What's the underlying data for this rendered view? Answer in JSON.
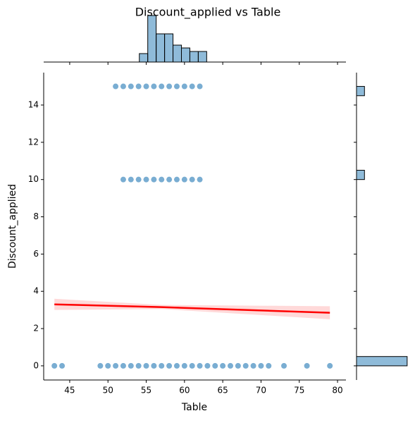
{
  "chart_data": {
    "type": "scatter",
    "title": "Discount_applied vs Table",
    "x_label": "Table",
    "y_label": "Discount_applied",
    "xlim": [
      41.6,
      81.1
    ],
    "xticks": [
      45,
      50,
      55,
      60,
      65,
      70,
      75,
      80
    ],
    "ylim": [
      -0.76,
      15.74
    ],
    "yticks": [
      0,
      2,
      4,
      6,
      8,
      10,
      12,
      14
    ],
    "color": "#1f77b4",
    "x": [
      51,
      52,
      53,
      54,
      55,
      56,
      57,
      58,
      59,
      60,
      61,
      62,
      52,
      53,
      54,
      55,
      56,
      57,
      58,
      59,
      60,
      61,
      62,
      43,
      44,
      49,
      50,
      51,
      52,
      53,
      54,
      55,
      56,
      57,
      58,
      59,
      60,
      61,
      62,
      63,
      64,
      65,
      66,
      67,
      68,
      69,
      70,
      71,
      73,
      76,
      79
    ],
    "y": [
      15,
      15,
      15,
      15,
      15,
      15,
      15,
      15,
      15,
      15,
      15,
      15,
      10,
      10,
      10,
      10,
      10,
      10,
      10,
      10,
      10,
      10,
      10,
      0,
      0,
      0,
      0,
      0,
      0,
      0,
      0,
      0,
      0,
      0,
      0,
      0,
      0,
      0,
      0,
      0,
      0,
      0,
      0,
      0,
      0,
      0,
      0,
      0,
      0,
      0,
      0
    ],
    "regression": {
      "color": "red",
      "x": [
        43,
        57,
        79
      ],
      "y": [
        3.3,
        3.15,
        2.85
      ],
      "ci_lower": [
        3.0,
        3.05,
        2.5
      ],
      "ci_upper": [
        3.6,
        3.27,
        3.2
      ]
    },
    "x_hist": {
      "bins": [
        54.1,
        55.2,
        56.3,
        57.4,
        58.5,
        59.6,
        60.7,
        61.8,
        62.9
      ],
      "counts": [
        12,
        66,
        40,
        40,
        24,
        20,
        15,
        15
      ],
      "ylim": [
        0,
        75
      ]
    },
    "y_hist": {
      "bins": [
        0,
        0.5,
        1,
        1.5,
        2,
        2.5,
        3,
        3.5,
        4,
        4.5,
        5,
        5.5,
        6,
        6.5,
        7,
        7.5,
        8,
        8.5,
        9,
        9.5,
        10,
        10.5,
        11,
        11.5,
        12,
        12.5,
        13,
        13.5,
        14,
        14.5,
        15
      ],
      "counts": [
        70,
        0,
        0,
        0,
        0,
        0,
        0,
        0,
        0,
        0,
        0,
        0,
        0,
        0,
        0,
        0,
        0,
        0,
        0,
        0,
        11,
        0,
        0,
        0,
        0,
        0,
        0,
        0,
        0,
        11
      ],
      "xlim": [
        0,
        75
      ]
    }
  }
}
